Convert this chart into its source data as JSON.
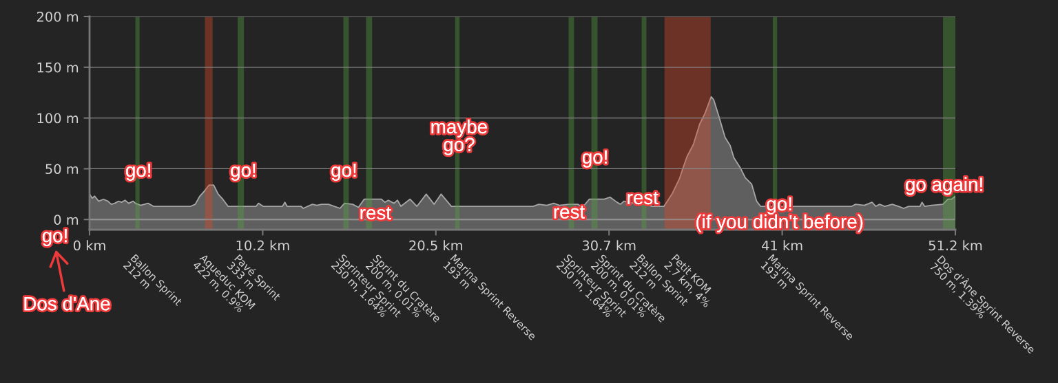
{
  "chart_data": {
    "type": "area",
    "x": [
      0.0,
      0.16,
      0.3,
      0.54,
      0.82,
      1.09,
      1.29,
      1.49,
      1.7,
      1.9,
      2.1,
      2.31,
      2.58,
      2.72,
      3.02,
      3.46,
      3.78,
      5.98,
      6.25,
      6.52,
      6.79,
      7.07,
      7.34,
      7.61,
      7.88,
      8.19,
      9.85,
      9.99,
      10.26,
      11.41,
      11.55,
      11.68,
      12.5,
      12.64,
      12.9,
      13.18,
      13.45,
      13.72,
      14.13,
      14.81,
      15.08,
      15.56,
      15.9,
      16.24,
      17.26,
      17.46,
      17.67,
      18.0,
      18.21,
      18.41,
      18.95,
      19.36,
      19.91,
      20.38,
      20.79,
      21.4,
      23.78,
      26.23,
      26.57,
      27.04,
      27.45,
      27.79,
      28.33,
      28.87,
      29.15,
      29.55,
      30.44,
      30.78,
      31.19,
      31.39,
      31.6,
      32.21,
      32.75,
      33.3,
      33.97,
      34.44,
      34.88,
      35.06,
      35.33,
      35.71,
      36.08,
      36.38,
      36.76,
      36.91,
      37.21,
      37.58,
      37.88,
      38.1,
      38.48,
      38.78,
      39.15,
      39.45,
      39.68,
      42.37,
      45.07,
      45.3,
      45.82,
      46.27,
      46.5,
      46.72,
      47.02,
      47.47,
      47.84,
      48.14,
      48.44,
      49.11,
      49.23,
      49.38,
      49.79,
      50.46,
      50.76,
      50.98,
      51.2
    ],
    "values": [
      25,
      21,
      23,
      18,
      20,
      18,
      15,
      16,
      18,
      17,
      19,
      16,
      18,
      16,
      14,
      16,
      13,
      13,
      15,
      23,
      28,
      34,
      34,
      25,
      20,
      13,
      13,
      16,
      13,
      13,
      17,
      13,
      13,
      11,
      13,
      15,
      14,
      15,
      15,
      11,
      16,
      15,
      12,
      20,
      20,
      17,
      19,
      16,
      19,
      13,
      20,
      13,
      25,
      15,
      25,
      13,
      13,
      13,
      15,
      14,
      16,
      14,
      15,
      15,
      12,
      20,
      20,
      22,
      17,
      15,
      18,
      16,
      15,
      13,
      13,
      25,
      40,
      49,
      62,
      74,
      94,
      104,
      121,
      118,
      102,
      81,
      73,
      61,
      51,
      41,
      35,
      18,
      13,
      13,
      13,
      15,
      14,
      17,
      13,
      15,
      13,
      15,
      13,
      11,
      13,
      13,
      17,
      13,
      14,
      15,
      20,
      20,
      23
    ],
    "color": "#5f5f5f",
    "xlim": [
      0,
      51.2
    ],
    "ylim": [
      -10,
      200
    ],
    "xticks": [
      {
        "value": 0,
        "label": "0 km"
      },
      {
        "value": 10.24,
        "label": "10.2 km"
      },
      {
        "value": 20.48,
        "label": "20.5 km"
      },
      {
        "value": 30.72,
        "label": "30.7 km"
      },
      {
        "value": 40.96,
        "label": "41 km"
      },
      {
        "value": 51.2,
        "label": "51.2 km"
      }
    ],
    "yticks": [
      {
        "value": 0,
        "label": "0 m"
      },
      {
        "value": 50,
        "label": "50 m"
      },
      {
        "value": 100,
        "label": "100 m"
      },
      {
        "value": 150,
        "label": "150 m"
      },
      {
        "value": 200,
        "label": "200 m"
      }
    ],
    "grid": "y",
    "bands": [
      {
        "axis": "x",
        "from": 2.71,
        "to": 2.96,
        "label": "Ballon Sprint\n212 m",
        "color": "#52a140"
      },
      {
        "axis": "x",
        "from": 6.82,
        "to": 7.28,
        "label": "Aqueduc KOM\n422 m, 0.9%",
        "color": "#d74829"
      },
      {
        "axis": "x",
        "from": 8.76,
        "to": 9.13,
        "label": "Pavé Sprint\n333 m",
        "color": "#52a140"
      },
      {
        "axis": "x",
        "from": 15.01,
        "to": 15.33,
        "label": "Sprinteur Sprint\n250 m, 1.64%",
        "color": "#52a140"
      },
      {
        "axis": "x",
        "from": 16.35,
        "to": 16.71,
        "label": "Sprint du Cratère\n200 m, 0.01%",
        "color": "#52a140"
      },
      {
        "axis": "x",
        "from": 21.62,
        "to": 21.88,
        "label": "Marina Sprint Reverse\n193 m",
        "color": "#52a140"
      },
      {
        "axis": "x",
        "from": 28.33,
        "to": 28.65,
        "label": "Sprinteur Sprint\n250 m, 1.64%",
        "color": "#52a140"
      },
      {
        "axis": "x",
        "from": 29.68,
        "to": 30.04,
        "label": "Sprint du Cratère\n200 m, 0.01%",
        "color": "#52a140"
      },
      {
        "axis": "x",
        "from": 32.65,
        "to": 32.93,
        "label": "Ballon Sprint\n212 m",
        "color": "#52a140"
      },
      {
        "axis": "x",
        "from": 34.0,
        "to": 36.73,
        "label": "Petit KOM\n2.7 km, 4%",
        "color": "#d74829"
      },
      {
        "axis": "x",
        "from": 40.4,
        "to": 40.66,
        "label": "Marina Sprint Reverse\n193 m",
        "color": "#52a140"
      },
      {
        "axis": "x",
        "from": 50.47,
        "to": 51.2,
        "label": "Dos d'Âne Sprint Reverse\n750 m, 1.39%",
        "color": "#52a140"
      }
    ],
    "annotations": [
      "go!",
      "Dos d'Ane",
      {
        "text": "go!",
        "x": 2.9,
        "y": 47
      },
      {
        "text": "go!",
        "x": 9.1,
        "y": 47
      },
      {
        "text": "go!",
        "x": 15.05,
        "y": 47
      },
      {
        "text": "rest",
        "x": 16.9,
        "y": 5
      },
      {
        "text": "maybe\ngo?",
        "x": 21.85,
        "y": 81
      },
      {
        "text": "rest",
        "x": 28.35,
        "y": 6
      },
      {
        "text": "go!",
        "x": 29.9,
        "y": 60
      },
      {
        "text": "rest",
        "x": 32.7,
        "y": 20
      },
      {
        "text": "go!\n(if you didn't before)",
        "x": 40.8,
        "y": 5
      },
      {
        "text": "go again!",
        "x": 50.55,
        "y": 33
      }
    ]
  }
}
